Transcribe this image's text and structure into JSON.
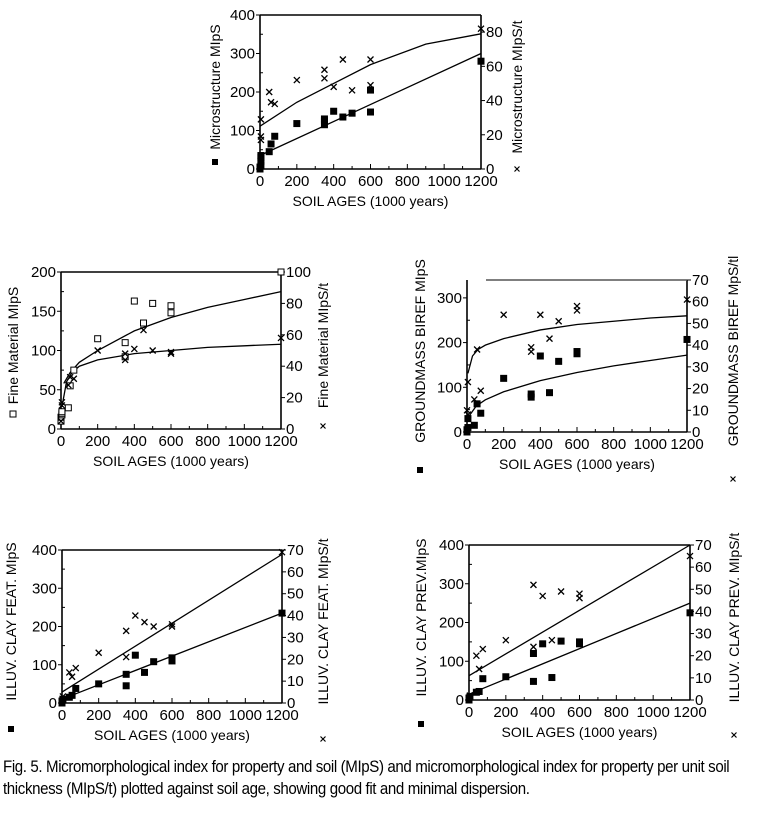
{
  "caption": "Fig. 5. Micromorphological index for property and soil (MIpS) and micromorphological index for property per unit soil thickness (MIpS/t) plotted against soil age, showing good fit and minimal dispersion.",
  "chart_data": [
    {
      "id": "microstructure",
      "type": "scatter",
      "xlabel": "SOIL  AGES  (1000 years)",
      "ylabel": "Microstructure MIpS",
      "ylabel_right": "Microstructure  MIpS/t",
      "legend_left_marker": "filled-square",
      "legend_right_marker": "x",
      "xlim": [
        0,
        1200
      ],
      "ylim": [
        0,
        400
      ],
      "ylim_right": [
        0,
        90
      ],
      "xticks": [
        "0",
        "200",
        "400",
        "600",
        "800",
        "1000",
        "1200"
      ],
      "yticks": [
        "0",
        "100",
        "200",
        "300",
        "400"
      ],
      "yticks_right": [
        "0",
        "20",
        "40",
        "60",
        "80"
      ],
      "series": [
        {
          "name": "MIpS",
          "marker": "filled-square",
          "axis": "left",
          "x": [
            0,
            0,
            5,
            5,
            5,
            5,
            50,
            60,
            80,
            200,
            350,
            350,
            350,
            400,
            450,
            500,
            600,
            600,
            1200
          ],
          "y": [
            0,
            5,
            10,
            20,
            30,
            35,
            45,
            65,
            85,
            118,
            115,
            125,
            130,
            150,
            135,
            145,
            148,
            205,
            280
          ]
        },
        {
          "name": "MIpS/t",
          "marker": "x",
          "axis": "right",
          "x": [
            0,
            5,
            5,
            5,
            50,
            60,
            80,
            200,
            350,
            350,
            400,
            450,
            500,
            600,
            600,
            1200
          ],
          "y": [
            0,
            17,
            19,
            29,
            45,
            39,
            38,
            52,
            53,
            58,
            48,
            64,
            46,
            64,
            49,
            82
          ]
        }
      ],
      "fits": [
        {
          "axis": "left",
          "x": [
            0,
            1200
          ],
          "y": [
            35,
            300
          ]
        },
        {
          "axis": "right",
          "x": [
            0,
            200,
            400,
            600,
            900,
            1200
          ],
          "y": [
            25,
            39,
            50,
            61,
            73,
            79
          ]
        }
      ]
    },
    {
      "id": "fine-material",
      "type": "scatter",
      "xlabel": "SOIL  AGES  (1000 years)",
      "ylabel": "Fine Material MIpS",
      "ylabel_right": "Fine Material MIpS/t",
      "legend_left_marker": "open-square",
      "legend_right_marker": "x",
      "xlim": [
        0,
        1200
      ],
      "ylim": [
        0,
        200
      ],
      "ylim_right": [
        0,
        100
      ],
      "xticks": [
        "0",
        "200",
        "400",
        "600",
        "800",
        "1000",
        "1200"
      ],
      "yticks": [
        "0",
        "50",
        "100",
        "150",
        "200"
      ],
      "yticks_right": [
        "0",
        "20",
        "40",
        "60",
        "80",
        "100"
      ],
      "series": [
        {
          "name": "MIpS",
          "marker": "open-square",
          "axis": "left",
          "x": [
            0,
            0,
            5,
            5,
            5,
            40,
            50,
            70,
            200,
            350,
            350,
            400,
            450,
            500,
            600,
            600,
            1200
          ],
          "y": [
            10,
            15,
            18,
            20,
            22,
            27,
            55,
            75,
            115,
            110,
            92,
            163,
            135,
            160,
            157,
            148,
            200
          ],
          "note": "left axis"
        },
        {
          "name": "MIpS/t",
          "marker": "x",
          "axis": "right",
          "x": [
            0,
            5,
            5,
            40,
            50,
            70,
            200,
            350,
            350,
            400,
            450,
            500,
            600,
            600,
            1200
          ],
          "y": [
            5,
            15,
            17,
            28,
            33,
            32,
            50,
            48,
            44,
            51,
            63,
            50,
            49,
            48,
            58
          ]
        }
      ],
      "fits": [
        {
          "axis": "left",
          "x": [
            15,
            50,
            100,
            200,
            400,
            600,
            800,
            1000,
            1200
          ],
          "y": [
            58,
            72,
            85,
            100,
            125,
            142,
            155,
            165,
            175
          ]
        },
        {
          "axis": "right",
          "x": [
            5,
            30,
            60,
            100,
            200,
            400,
            600,
            800,
            1000,
            1200
          ],
          "y": [
            14,
            30,
            36,
            40,
            44,
            48,
            50,
            52,
            53,
            54
          ]
        }
      ]
    },
    {
      "id": "groundmass",
      "type": "scatter",
      "xlabel": "SOIL  AGES  (1000 years)",
      "ylabel": "GROUNDMASS  BIREF  MIpS",
      "ylabel_right": "GROUNDMASS  BIREF  MpS/tl",
      "legend_left_marker": "filled-square",
      "legend_right_marker": "x",
      "xlim": [
        0,
        1200
      ],
      "ylim": [
        0,
        340
      ],
      "ylim_right": [
        0,
        70
      ],
      "xticks": [
        "0",
        "200",
        "400",
        "600",
        "800",
        "1000",
        "1200"
      ],
      "yticks": [
        "0",
        "100",
        "200",
        "300"
      ],
      "yticks_right": [
        "0",
        "10",
        "20",
        "30",
        "40",
        "50",
        "60",
        "70"
      ],
      "series": [
        {
          "name": "MIpS",
          "marker": "filled-square",
          "axis": "left",
          "x": [
            0,
            0,
            5,
            5,
            40,
            55,
            75,
            200,
            350,
            350,
            400,
            450,
            500,
            600,
            600,
            1200
          ],
          "y": [
            0,
            5,
            10,
            30,
            15,
            63,
            42,
            120,
            78,
            85,
            170,
            88,
            158,
            175,
            180,
            207
          ]
        },
        {
          "name": "MIpS/t",
          "marker": "x",
          "axis": "right",
          "x": [
            0,
            5,
            5,
            40,
            55,
            75,
            200,
            350,
            350,
            400,
            450,
            500,
            600,
            600,
            1200
          ],
          "y": [
            10,
            23,
            8,
            15,
            38,
            19,
            54,
            37,
            39,
            54,
            43,
            51,
            56,
            58,
            61
          ]
        }
      ],
      "fits": [
        {
          "axis": "left",
          "x": [
            10,
            50,
            100,
            200,
            400,
            600,
            800,
            1000,
            1200
          ],
          "y": [
            35,
            58,
            72,
            90,
            115,
            133,
            148,
            160,
            172
          ]
        },
        {
          "axis": "right",
          "x": [
            5,
            30,
            60,
            100,
            200,
            400,
            600,
            800,
            1000,
            1200
          ],
          "y": [
            27,
            35,
            38,
            40,
            43,
            47,
            49.5,
            51,
            52.5,
            53.5
          ]
        }
      ]
    },
    {
      "id": "illuv-clay-feat",
      "type": "scatter",
      "xlabel": "SOIL  AGES  (1000 years)",
      "ylabel": "ILLUV.  CLAY   FEAT.  MIpS",
      "ylabel_right": "ILLUV.  CLAY   FEAT.  MIpS/t",
      "legend_left_marker": "filled-square",
      "legend_right_marker": "x",
      "xlim": [
        0,
        1200
      ],
      "ylim": [
        0,
        400
      ],
      "ylim_right": [
        0,
        70
      ],
      "xticks": [
        "0",
        "200",
        "400",
        "600",
        "800",
        "1000",
        "1200"
      ],
      "yticks": [
        "0",
        "100",
        "200",
        "300",
        "400"
      ],
      "yticks_right": [
        "0",
        "10",
        "20",
        "30",
        "40",
        "50",
        "60",
        "70"
      ],
      "series": [
        {
          "name": "MIpS",
          "marker": "filled-square",
          "axis": "left",
          "x": [
            0,
            0,
            5,
            40,
            55,
            75,
            200,
            350,
            350,
            400,
            450,
            500,
            600,
            600,
            1200
          ],
          "y": [
            0,
            5,
            10,
            15,
            20,
            38,
            50,
            45,
            75,
            125,
            80,
            108,
            110,
            118,
            235
          ]
        },
        {
          "name": "MIpS/t",
          "marker": "x",
          "axis": "right",
          "x": [
            0,
            5,
            40,
            55,
            75,
            200,
            350,
            350,
            400,
            450,
            500,
            600,
            600,
            1200
          ],
          "y": [
            1,
            3,
            14,
            12,
            16,
            23,
            21,
            33,
            40,
            37,
            35,
            36,
            35,
            69
          ]
        }
      ],
      "fits": [
        {
          "axis": "left",
          "x": [
            0,
            1200
          ],
          "y": [
            10,
            235
          ]
        },
        {
          "axis": "right",
          "x": [
            0,
            1200
          ],
          "y": [
            5,
            68
          ]
        }
      ]
    },
    {
      "id": "illuv-clay-prev",
      "type": "scatter",
      "xlabel": "SOIL  AGES  (1000 years)",
      "ylabel": "ILLUV.  CLAY   PREV.MIpS",
      "ylabel_right": "ILLUV.  CLAY  PREV.  MIpS/t",
      "legend_left_marker": "filled-square",
      "legend_right_marker": "x",
      "xlim": [
        0,
        1200
      ],
      "ylim": [
        0,
        400
      ],
      "ylim_right": [
        0,
        70
      ],
      "xticks": [
        "0",
        "200",
        "400",
        "600",
        "800",
        "1000",
        "1200"
      ],
      "yticks": [
        "0",
        "100",
        "200",
        "300",
        "400"
      ],
      "yticks_right": [
        "0",
        "10",
        "20",
        "30",
        "40",
        "50",
        "60",
        "70"
      ],
      "series": [
        {
          "name": "MIpS",
          "marker": "filled-square",
          "axis": "left",
          "x": [
            0,
            0,
            5,
            40,
            55,
            75,
            200,
            350,
            350,
            400,
            450,
            500,
            600,
            600,
            1200
          ],
          "y": [
            0,
            5,
            8,
            20,
            22,
            55,
            60,
            48,
            120,
            145,
            58,
            152,
            145,
            150,
            225
          ]
        },
        {
          "name": "MIpS/t",
          "marker": "x",
          "axis": "right",
          "x": [
            0,
            5,
            40,
            55,
            75,
            200,
            350,
            350,
            400,
            450,
            500,
            600,
            600,
            1200
          ],
          "y": [
            1,
            2,
            20,
            14,
            23,
            27,
            24,
            52,
            47,
            27,
            49,
            46,
            48,
            65
          ]
        }
      ],
      "fits": [
        {
          "axis": "left",
          "x": [
            0,
            1200
          ],
          "y": [
            15,
            250
          ]
        },
        {
          "axis": "right",
          "x": [
            0,
            1200
          ],
          "y": [
            11,
            70
          ]
        }
      ]
    }
  ]
}
